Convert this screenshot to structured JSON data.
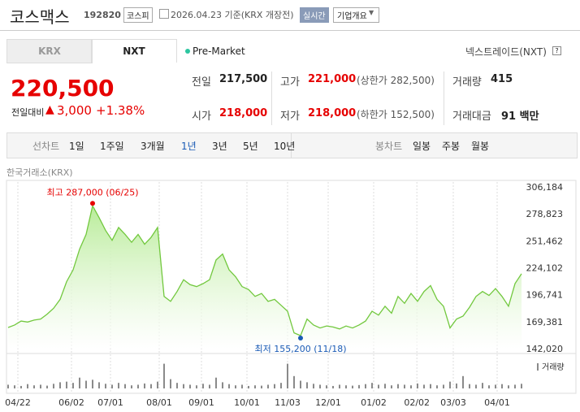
{
  "header": {
    "name": "코스맥스",
    "code": "192820",
    "market": "코스피",
    "date": "2026.04.23 기준(KRX 개장전)",
    "realtime": "실시간",
    "overview": "기업개요"
  },
  "tabs": [
    "KRX",
    "NXT"
  ],
  "session": "Pre-Market",
  "exchange": "넥스트레이드(NXT)",
  "price": {
    "current": "220,500",
    "change_label": "전일대비",
    "change": "3,000",
    "change_pct": "+1.38%"
  },
  "stats": [
    {
      "label": "전일",
      "value": "217,500"
    },
    {
      "label": "고가",
      "value": "221,000",
      "note": "(상한가 282,500)"
    },
    {
      "label": "거래량",
      "value": "415"
    },
    {
      "label": "시가",
      "value": "218,000"
    },
    {
      "label": "저가",
      "value": "218,000",
      "note": "(하한가 152,500)"
    },
    {
      "label": "거래대금",
      "value": "91 백만"
    }
  ],
  "periods": {
    "label": "선차트",
    "options": [
      "1일",
      "1주일",
      "3개월",
      "1년",
      "3년",
      "5년",
      "10년"
    ],
    "active": 3
  },
  "candles": {
    "label": "봉차트",
    "options": [
      "일봉",
      "주봉",
      "월봉"
    ]
  },
  "chart_data": {
    "type": "line",
    "source": "한국거래소(KRX)",
    "color": "#72c83e",
    "values": [
      163500,
      166000,
      170000,
      169000,
      171000,
      172000,
      177000,
      183000,
      192000,
      210000,
      222000,
      243000,
      258000,
      287000,
      275000,
      262000,
      252000,
      265000,
      258000,
      250000,
      258000,
      248000,
      255000,
      265000,
      195000,
      190000,
      200000,
      212000,
      207000,
      205000,
      208000,
      212000,
      232000,
      238000,
      222000,
      215000,
      205000,
      202000,
      195000,
      198000,
      190000,
      192000,
      186000,
      180000,
      158000,
      155200,
      172000,
      166000,
      163000,
      165000,
      164000,
      162000,
      165000,
      163000,
      166000,
      170000,
      180000,
      176000,
      185000,
      178000,
      195000,
      188000,
      198000,
      190000,
      200000,
      206000,
      192000,
      185000,
      163000,
      172000,
      175000,
      184000,
      195000,
      200000,
      196000,
      203000,
      195000,
      185000,
      208000,
      218000
    ],
    "xlim": [
      0,
      79
    ],
    "xticks": [
      {
        "value": 1.5,
        "label": "04/22"
      },
      {
        "value": 9.75,
        "label": "06/02"
      },
      {
        "value": 15.75,
        "label": "07/01"
      },
      {
        "value": 23.25,
        "label": "08/01"
      },
      {
        "value": 29.75,
        "label": "09/01"
      },
      {
        "value": 36.75,
        "label": "10/01"
      },
      {
        "value": 43,
        "label": "11/03"
      },
      {
        "value": 49.25,
        "label": "12/01"
      },
      {
        "value": 56.25,
        "label": "01/02"
      },
      {
        "value": 62.9,
        "label": "02/02"
      },
      {
        "value": 68.5,
        "label": "03/03"
      },
      {
        "value": 75.25,
        "label": "04/01"
      }
    ],
    "ylim": [
      142020,
      306184
    ],
    "yticks": [
      {
        "value": 306184,
        "label": "306,184"
      },
      {
        "value": 278823,
        "label": "278,823"
      },
      {
        "value": 251462,
        "label": "251,462"
      },
      {
        "value": 224102,
        "label": "224,102"
      },
      {
        "value": 196741,
        "label": "196,741"
      },
      {
        "value": 169381,
        "label": "169,381"
      },
      {
        "value": 142020,
        "label": "142,020"
      }
    ],
    "annotations": [
      {
        "text": "최고 287,000 (06/25)",
        "index": 13,
        "color": "#e60000"
      },
      {
        "text": "최저 155,200 (11/18)",
        "index": 45,
        "color": "#1a5bb5"
      }
    ],
    "volume": {
      "label": "거래량",
      "color": "#8a8a8a",
      "ylim": [
        0,
        100
      ],
      "values": [
        12,
        10,
        8,
        14,
        10,
        12,
        9,
        15,
        20,
        22,
        18,
        35,
        25,
        28,
        20,
        15,
        12,
        18,
        14,
        10,
        12,
        16,
        14,
        22,
        80,
        30,
        18,
        14,
        12,
        10,
        15,
        12,
        35,
        20,
        14,
        10,
        12,
        8,
        10,
        9,
        12,
        14,
        18,
        80,
        40,
        25,
        20,
        15,
        12,
        10,
        8,
        12,
        10,
        9,
        11,
        14,
        18,
        12,
        15,
        10,
        14,
        12,
        10,
        16,
        12,
        14,
        10,
        12,
        22,
        16,
        40,
        14,
        12,
        18,
        10,
        12,
        14,
        10,
        12,
        15
      ]
    }
  }
}
